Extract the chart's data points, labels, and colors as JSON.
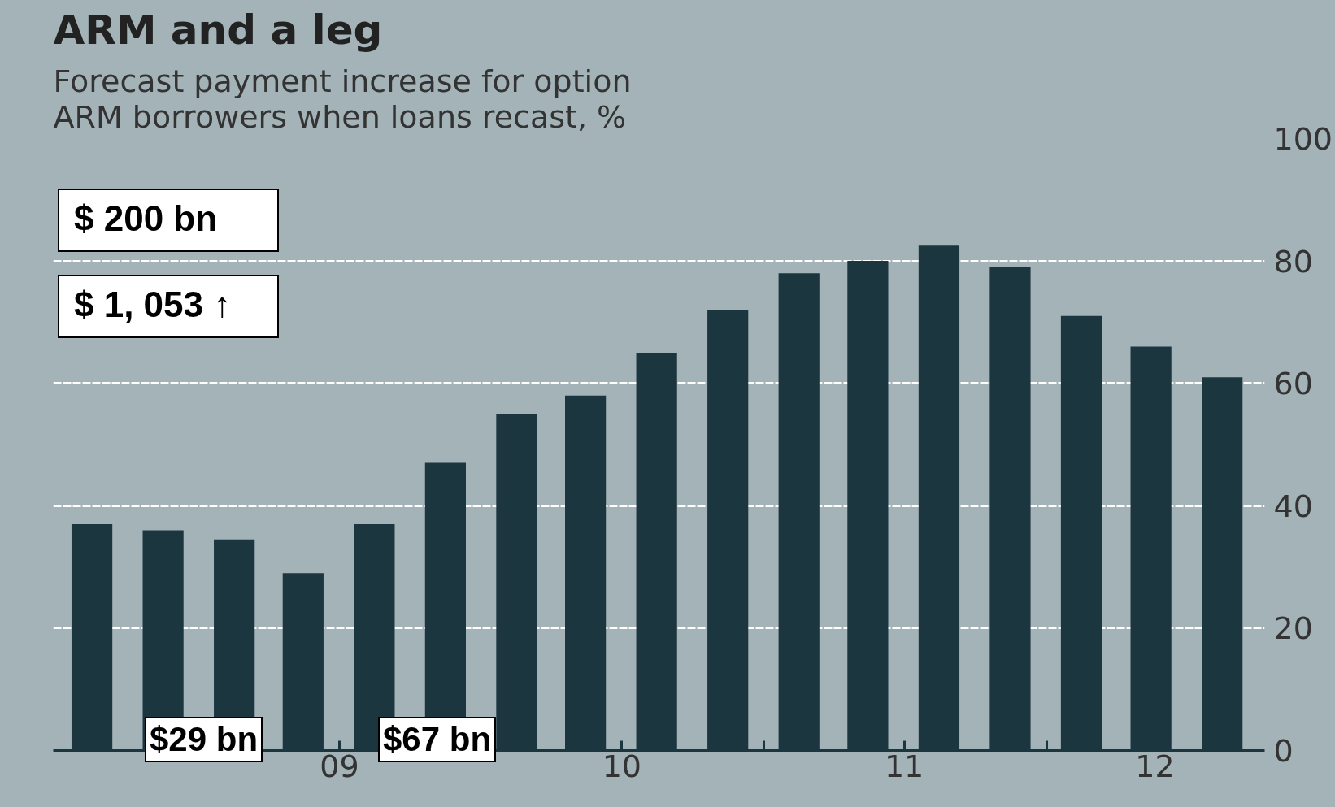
{
  "chart_data": {
    "type": "bar",
    "title": "ARM and a leg",
    "subtitle": "Forecast payment increase for option\nARM borrowers when loans recast, %",
    "x": [
      "2008-08-15",
      "2008-11-15",
      "2009-02-15",
      "2009-05-15",
      "2009-08-15",
      "2009-11-15",
      "2010-02-15",
      "2010-05-15",
      "2010-08-15",
      "2010-11-15",
      "2011-02-15",
      "2011-05-15",
      "2011-08-15",
      "2011-11-15",
      "2012-02-15",
      "2012-05-15",
      "2012-08-15"
    ],
    "values": [
      37,
      36,
      34.5,
      29,
      37,
      47,
      55,
      58,
      65,
      72,
      78,
      80,
      82.5,
      79,
      71,
      66,
      61
    ],
    "color": "#1c3640",
    "xlim": [
      "2008-06-26",
      "2012-10-09"
    ],
    "xticks": [
      {
        "value": "2009-01-01",
        "label": null
      },
      {
        "value": "2009-07-01",
        "label": "09"
      },
      {
        "value": "2010-01-01",
        "label": null
      },
      {
        "value": "2010-07-01",
        "label": "10"
      },
      {
        "value": "2011-01-01",
        "label": null
      },
      {
        "value": "2011-07-01",
        "label": "11"
      },
      {
        "value": "2012-01-01",
        "label": null
      },
      {
        "value": "2012-05-20",
        "label": "12"
      }
    ],
    "ylim": [
      0,
      100
    ],
    "yticks": [
      0,
      20,
      40,
      60,
      80,
      100
    ],
    "grid": "y",
    "annotations": [
      "$ 200 bn",
      "$ 1, 053 ↑",
      "$29 bn",
      "$67 bn"
    ]
  }
}
